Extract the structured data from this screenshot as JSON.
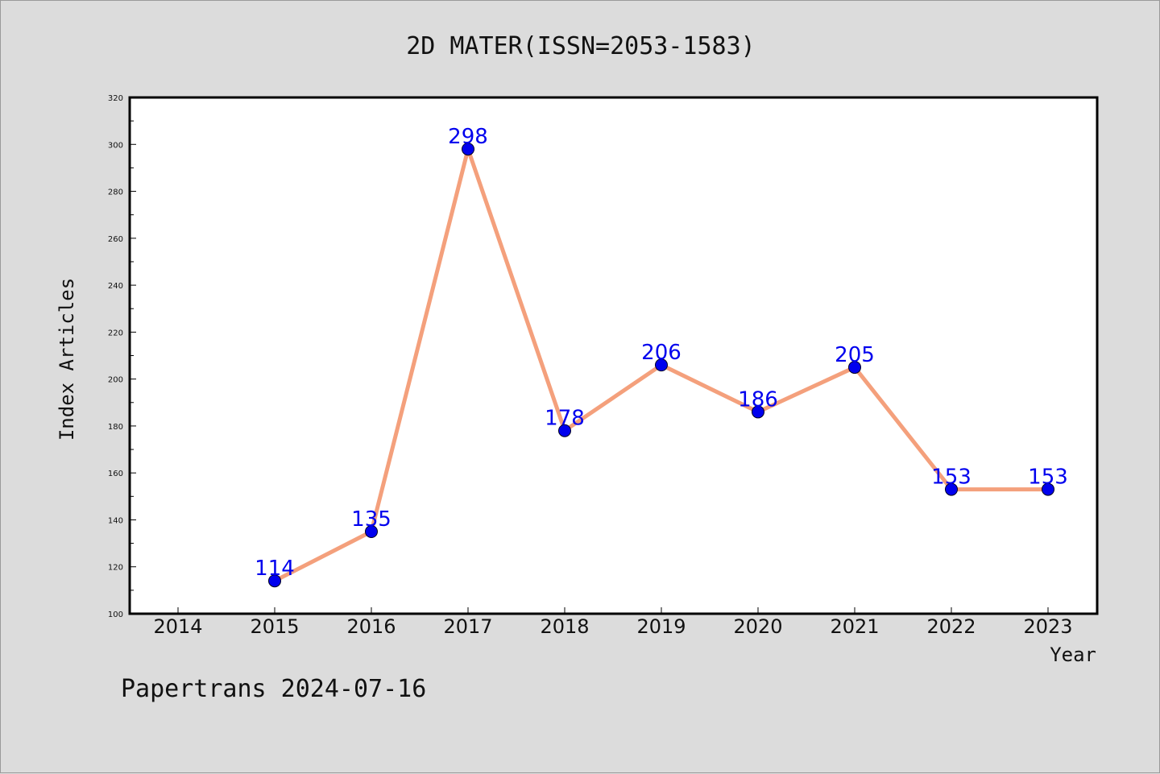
{
  "chart_data": {
    "type": "line",
    "title": "2D MATER(ISSN=2053-1583)",
    "xlabel": "Year",
    "ylabel": "Index Articles",
    "categories": [
      "2014",
      "2015",
      "2016",
      "2017",
      "2018",
      "2019",
      "2020",
      "2021",
      "2022",
      "2023"
    ],
    "series": [
      {
        "x": [
          "2015",
          "2016",
          "2017",
          "2018",
          "2019",
          "2020",
          "2021",
          "2022",
          "2023"
        ],
        "values": [
          114,
          135,
          298,
          178,
          206,
          186,
          205,
          153,
          153
        ]
      }
    ],
    "ylim": [
      100,
      320
    ],
    "yticks": [
      100,
      120,
      140,
      160,
      180,
      200,
      220,
      240,
      260,
      280,
      300,
      320
    ],
    "grid": false,
    "data_labels": true,
    "line_color": "#f4a07c",
    "marker_color": "#0000ee",
    "label_color": "#0000ee"
  },
  "footer": {
    "text": "Papertrans 2024-07-16"
  }
}
